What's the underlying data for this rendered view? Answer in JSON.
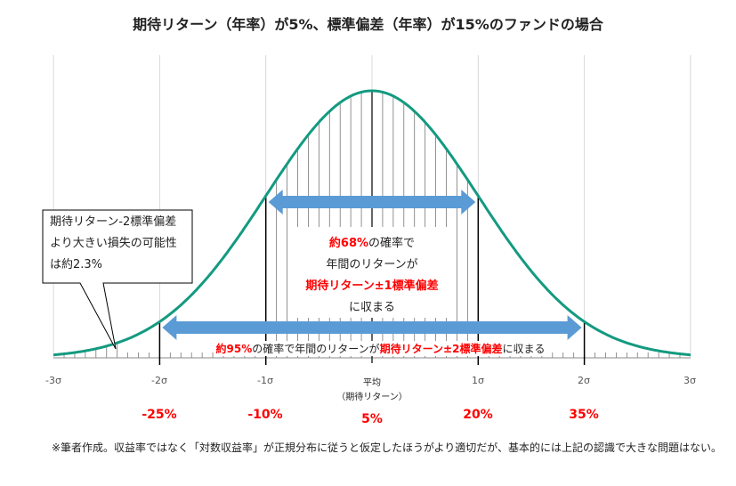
{
  "title": "期待リターン（年率）が5%、標準偏差（年率）が15%のファンドの場合",
  "callout": {
    "line1": "期待リターン-2標準偏差",
    "line2": "より大きい損失の可能性",
    "line3": "は約2.3%"
  },
  "band1": {
    "p1_red": "約68%",
    "p1": "の確率で",
    "p2": "年間のリターンが",
    "p3_red": "期待リターン±1標準偏差",
    "p4": "に収まる"
  },
  "band2": {
    "a_red": "約95%",
    "b": "の確率で年間のリターンが",
    "c_red": "期待リターン±2標準偏差",
    "d": "に収まる"
  },
  "axis": {
    "labels": [
      "-3σ",
      "-2σ",
      "-1σ",
      "平均",
      "1σ",
      "2σ",
      "3σ"
    ],
    "mean_sub": "（期待リターン）"
  },
  "returns": [
    "-25%",
    "-10%",
    "5%",
    "20%",
    "35%"
  ],
  "footnote": "※筆者作成。収益率ではなく「対数収益率」が正規分布に従うと仮定したほうがより適切だが、基本的には上記の認識で大きな問題はない。",
  "chart_data": {
    "type": "normal-distribution",
    "mean": 5,
    "sd": 15,
    "x_range_sigma": [
      -3,
      3
    ],
    "curve_color": "#139a80",
    "arrow_color": "#5b9bd5"
  }
}
